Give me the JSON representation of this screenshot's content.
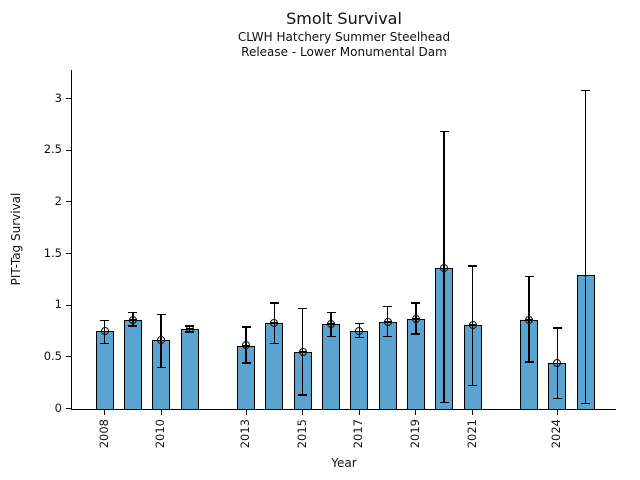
{
  "chart_data": {
    "type": "bar",
    "title": "Smolt Survival",
    "subtitle": [
      "CLWH Hatchery Summer Steelhead",
      "Release - Lower Monumental Dam"
    ],
    "xlabel": "Year",
    "ylabel": "PIT-Tag Survival",
    "ylim": [
      0,
      3.28
    ],
    "xlim": [
      2006.8,
      2026.1
    ],
    "grid": false,
    "legend": null,
    "bar_color": "#5BA3D0",
    "edge_color": "#000000",
    "yticks": [
      "0",
      "0.5",
      "1",
      "1.5",
      "2",
      "2.5",
      "3"
    ],
    "xtick_years": [
      2008,
      2010,
      2013,
      2015,
      2017,
      2019,
      2021,
      2024
    ],
    "missing_years": [
      2012,
      2022
    ],
    "points": [
      {
        "year": 2008,
        "value": 0.75,
        "ci_low": 0.63,
        "ci_high": 0.85,
        "marker": true
      },
      {
        "year": 2009,
        "value": 0.86,
        "ci_low": 0.8,
        "ci_high": 0.93,
        "marker": true
      },
      {
        "year": 2010,
        "value": 0.66,
        "ci_low": 0.4,
        "ci_high": 0.91,
        "marker": true
      },
      {
        "year": 2011,
        "value": 0.77,
        "ci_low": 0.74,
        "ci_high": 0.8,
        "marker": true
      },
      {
        "year": 2013,
        "value": 0.61,
        "ci_low": 0.44,
        "ci_high": 0.79,
        "marker": true
      },
      {
        "year": 2014,
        "value": 0.83,
        "ci_low": 0.63,
        "ci_high": 1.02,
        "marker": true
      },
      {
        "year": 2015,
        "value": 0.55,
        "ci_low": 0.13,
        "ci_high": 0.97,
        "marker": true
      },
      {
        "year": 2016,
        "value": 0.82,
        "ci_low": 0.7,
        "ci_high": 0.93,
        "marker": true
      },
      {
        "year": 2017,
        "value": 0.75,
        "ci_low": 0.69,
        "ci_high": 0.82,
        "marker": true
      },
      {
        "year": 2018,
        "value": 0.84,
        "ci_low": 0.7,
        "ci_high": 0.99,
        "marker": true
      },
      {
        "year": 2019,
        "value": 0.87,
        "ci_low": 0.72,
        "ci_high": 1.02,
        "marker": true
      },
      {
        "year": 2020,
        "value": 1.36,
        "ci_low": 0.06,
        "ci_high": 2.68,
        "marker": true
      },
      {
        "year": 2021,
        "value": 0.81,
        "ci_low": 0.22,
        "ci_high": 1.38,
        "marker": true
      },
      {
        "year": 2023,
        "value": 0.86,
        "ci_low": 0.45,
        "ci_high": 1.28,
        "marker": true
      },
      {
        "year": 2024,
        "value": 0.44,
        "ci_low": 0.1,
        "ci_high": 0.78,
        "marker": true
      },
      {
        "year": 2025,
        "value": 1.29,
        "ci_low": 0.05,
        "ci_high": 3.08,
        "marker": false
      }
    ]
  }
}
